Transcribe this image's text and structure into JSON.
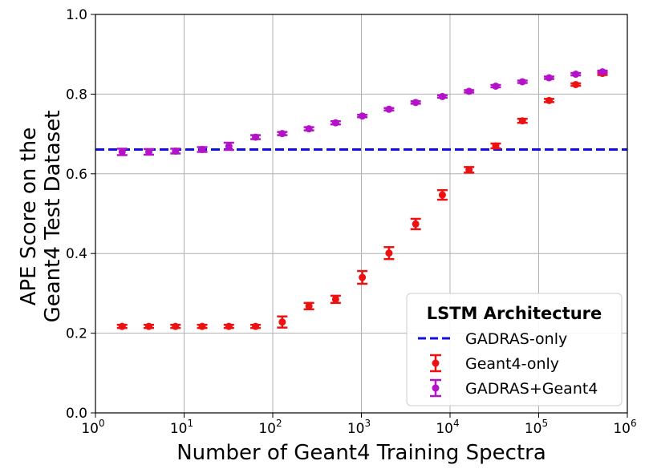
{
  "chart_data": {
    "type": "scatter",
    "title": "",
    "xlabel": "Number of Geant4 Training Spectra",
    "ylabel_lines": [
      "APE Score on the",
      "Geant4 Test Dataset"
    ],
    "xscale": "log",
    "xlim": [
      1,
      1000000
    ],
    "ylim": [
      0.0,
      1.0
    ],
    "x_ticks": [
      {
        "value": 1,
        "base": "10",
        "exp": "0"
      },
      {
        "value": 10,
        "base": "10",
        "exp": "1"
      },
      {
        "value": 100,
        "base": "10",
        "exp": "2"
      },
      {
        "value": 1000,
        "base": "10",
        "exp": "3"
      },
      {
        "value": 10000,
        "base": "10",
        "exp": "4"
      },
      {
        "value": 100000,
        "base": "10",
        "exp": "5"
      },
      {
        "value": 1000000,
        "base": "10",
        "exp": "6"
      }
    ],
    "y_ticks": [
      {
        "value": 0.0,
        "label": "0.0"
      },
      {
        "value": 0.2,
        "label": "0.2"
      },
      {
        "value": 0.4,
        "label": "0.4"
      },
      {
        "value": 0.6,
        "label": "0.6"
      },
      {
        "value": 0.8,
        "label": "0.8"
      },
      {
        "value": 1.0,
        "label": "1.0"
      }
    ],
    "grid": true,
    "legend": {
      "title": "LSTM Architecture",
      "position": "bottom-right",
      "entries": [
        {
          "label": "GADRAS-only",
          "kind": "dashed-line",
          "color": "#1010e0"
        },
        {
          "label": "Geant4-only",
          "kind": "errorbar",
          "color": "#ee1111"
        },
        {
          "label": "GADRAS+Geant4",
          "kind": "errorbar",
          "color": "#b412c8"
        }
      ]
    },
    "hline": {
      "name": "GADRAS-only",
      "y": 0.661,
      "color": "#1010e0"
    },
    "series": [
      {
        "name": "Geant4-only",
        "color": "#ee1111",
        "points": [
          {
            "x": 2,
            "y": 0.217,
            "err": 0.004
          },
          {
            "x": 4,
            "y": 0.217,
            "err": 0.004
          },
          {
            "x": 8,
            "y": 0.217,
            "err": 0.004
          },
          {
            "x": 16,
            "y": 0.217,
            "err": 0.004
          },
          {
            "x": 32,
            "y": 0.217,
            "err": 0.004
          },
          {
            "x": 64,
            "y": 0.217,
            "err": 0.004
          },
          {
            "x": 128,
            "y": 0.228,
            "err": 0.014
          },
          {
            "x": 256,
            "y": 0.268,
            "err": 0.008
          },
          {
            "x": 512,
            "y": 0.285,
            "err": 0.009
          },
          {
            "x": 1024,
            "y": 0.34,
            "err": 0.016
          },
          {
            "x": 2048,
            "y": 0.401,
            "err": 0.015
          },
          {
            "x": 4096,
            "y": 0.474,
            "err": 0.013
          },
          {
            "x": 8192,
            "y": 0.547,
            "err": 0.012
          },
          {
            "x": 16384,
            "y": 0.61,
            "err": 0.007
          },
          {
            "x": 32768,
            "y": 0.67,
            "err": 0.006
          },
          {
            "x": 65536,
            "y": 0.733,
            "err": 0.005
          },
          {
            "x": 131072,
            "y": 0.784,
            "err": 0.004
          },
          {
            "x": 262144,
            "y": 0.824,
            "err": 0.003
          },
          {
            "x": 524288,
            "y": 0.852,
            "err": 0.004
          }
        ]
      },
      {
        "name": "GADRAS+Geant4",
        "color": "#b412c8",
        "points": [
          {
            "x": 2,
            "y": 0.655,
            "err": 0.008
          },
          {
            "x": 4,
            "y": 0.655,
            "err": 0.007
          },
          {
            "x": 8,
            "y": 0.657,
            "err": 0.006
          },
          {
            "x": 16,
            "y": 0.661,
            "err": 0.006
          },
          {
            "x": 32,
            "y": 0.669,
            "err": 0.009
          },
          {
            "x": 64,
            "y": 0.692,
            "err": 0.005
          },
          {
            "x": 128,
            "y": 0.701,
            "err": 0.004
          },
          {
            "x": 256,
            "y": 0.713,
            "err": 0.004
          },
          {
            "x": 512,
            "y": 0.728,
            "err": 0.004
          },
          {
            "x": 1024,
            "y": 0.745,
            "err": 0.003
          },
          {
            "x": 2048,
            "y": 0.762,
            "err": 0.003
          },
          {
            "x": 4096,
            "y": 0.779,
            "err": 0.003
          },
          {
            "x": 8192,
            "y": 0.794,
            "err": 0.003
          },
          {
            "x": 16384,
            "y": 0.807,
            "err": 0.003
          },
          {
            "x": 32768,
            "y": 0.82,
            "err": 0.003
          },
          {
            "x": 65536,
            "y": 0.831,
            "err": 0.003
          },
          {
            "x": 131072,
            "y": 0.841,
            "err": 0.003
          },
          {
            "x": 262144,
            "y": 0.85,
            "err": 0.003
          },
          {
            "x": 524288,
            "y": 0.856,
            "err": 0.003
          }
        ]
      }
    ]
  }
}
